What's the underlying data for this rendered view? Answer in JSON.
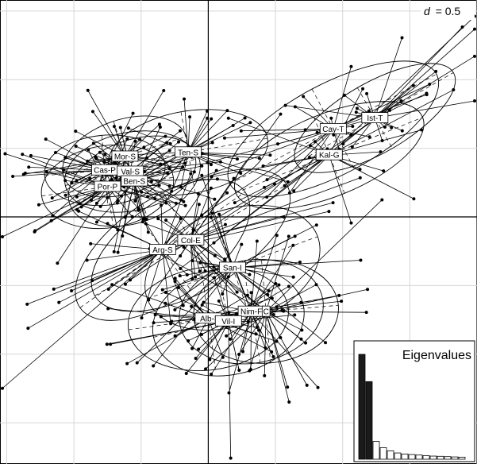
{
  "chart_data": {
    "type": "scatter",
    "scale_label_symbol": "d",
    "scale_label_value": "= 0.5",
    "grid_step": 0.5,
    "xlim": [
      -1.55,
      2.0
    ],
    "ylim": [
      -1.8,
      1.58
    ],
    "groups": [
      {
        "label": "Mor-S",
        "x": -0.62,
        "y": 0.44,
        "sx": 0.32,
        "sy": 0.18,
        "angle": -18,
        "n": 26
      },
      {
        "label": "Cas-P",
        "x": -0.77,
        "y": 0.34,
        "sx": 0.3,
        "sy": 0.17,
        "angle": -5,
        "n": 24
      },
      {
        "label": "Val-S",
        "x": -0.58,
        "y": 0.33,
        "sx": 0.33,
        "sy": 0.19,
        "angle": -12,
        "n": 24
      },
      {
        "label": "Ben-S",
        "x": -0.55,
        "y": 0.26,
        "sx": 0.34,
        "sy": 0.2,
        "angle": -20,
        "n": 24
      },
      {
        "label": "Por-P",
        "x": -0.75,
        "y": 0.22,
        "sx": 0.33,
        "sy": 0.2,
        "angle": -8,
        "n": 26
      },
      {
        "label": "Ten-S",
        "x": -0.15,
        "y": 0.47,
        "sx": 0.4,
        "sy": 0.2,
        "angle": -10,
        "n": 20
      },
      {
        "label": "Cay-T",
        "x": 0.93,
        "y": 0.64,
        "sx": 0.58,
        "sy": 0.22,
        "angle": -28,
        "n": 22
      },
      {
        "label": "Ist-T",
        "x": 1.24,
        "y": 0.72,
        "sx": 0.45,
        "sy": 0.17,
        "angle": -30,
        "n": 22
      },
      {
        "label": "Kal-G",
        "x": 0.9,
        "y": 0.45,
        "sx": 0.5,
        "sy": 0.2,
        "angle": -22,
        "n": 22
      },
      {
        "label": "Col-E",
        "x": -0.13,
        "y": -0.17,
        "sx": 0.55,
        "sy": 0.25,
        "angle": -30,
        "n": 26
      },
      {
        "label": "Arg-S",
        "x": -0.34,
        "y": -0.24,
        "sx": 0.5,
        "sy": 0.24,
        "angle": -35,
        "n": 24
      },
      {
        "label": "San-I",
        "x": 0.18,
        "y": -0.37,
        "sx": 0.45,
        "sy": 0.28,
        "angle": -20,
        "n": 24
      },
      {
        "label": "Nim-F",
        "x": 0.32,
        "y": -0.69,
        "sx": 0.36,
        "sy": 0.25,
        "angle": -10,
        "n": 24
      },
      {
        "label": "C",
        "x": 0.43,
        "y": -0.69,
        "sx": 0.36,
        "sy": 0.25,
        "angle": -5,
        "n": 22
      },
      {
        "label": "Alb-I",
        "x": 0.0,
        "y": -0.74,
        "sx": 0.4,
        "sy": 0.25,
        "angle": -8,
        "n": 24
      },
      {
        "label": "Vil-I",
        "x": 0.15,
        "y": -0.76,
        "sx": 0.38,
        "sy": 0.26,
        "angle": -12,
        "n": 24
      }
    ],
    "eigenvalues": {
      "title": "Eigenvalues",
      "values": [
        1.0,
        0.74,
        0.17,
        0.11,
        0.08,
        0.06,
        0.05,
        0.045,
        0.04,
        0.035,
        0.03,
        0.028,
        0.025,
        0.022,
        0.02
      ],
      "highlighted_count": 2
    }
  }
}
